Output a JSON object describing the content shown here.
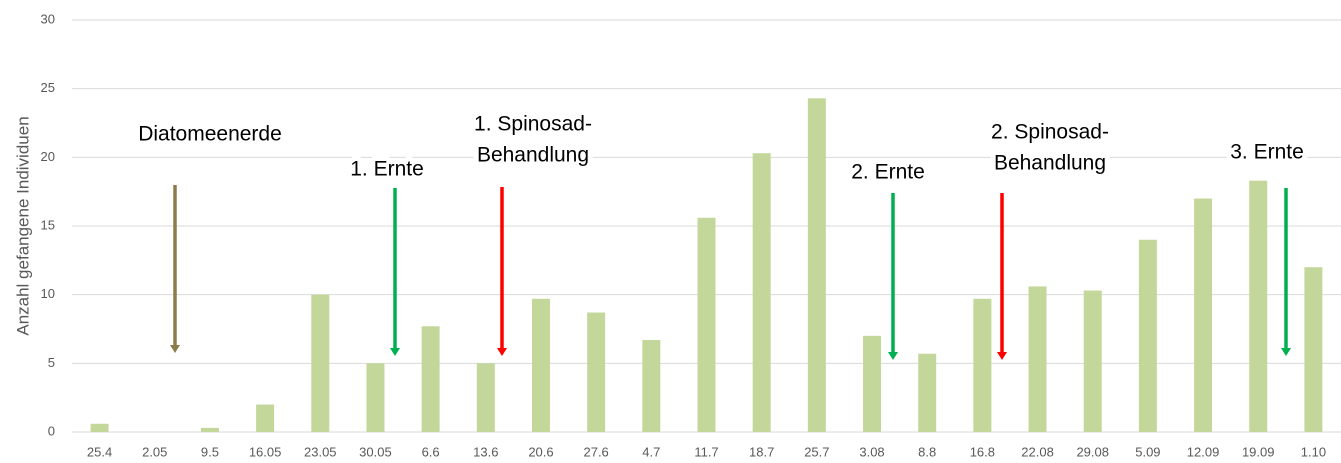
{
  "chart_data": {
    "type": "bar",
    "y_label": "Anzahl gefangene Individuen",
    "categories": [
      "25.4",
      "2.05",
      "9.5",
      "16.05",
      "23.05",
      "30.05",
      "6.6",
      "13.6",
      "20.6",
      "27.6",
      "4.7",
      "11.7",
      "18.7",
      "25.7",
      "3.08",
      "8.8",
      "16.8",
      "22.08",
      "29.08",
      "5.09",
      "12.09",
      "19.09",
      "1.10"
    ],
    "values": [
      0.6,
      0,
      0.3,
      2,
      10,
      5,
      7.7,
      5,
      9.7,
      8.7,
      6.7,
      15.6,
      20.3,
      24.3,
      7,
      5.7,
      9.7,
      10.6,
      10.3,
      14,
      17,
      18.3,
      12
    ],
    "color": "#c4d79b",
    "ylim": [
      0,
      30
    ],
    "yticks": [
      0,
      5,
      10,
      15,
      20,
      25,
      30
    ],
    "grid": true,
    "annotations": [
      {
        "lines": [
          "Diatomeenerde"
        ],
        "color": "#8b7d4b"
      },
      {
        "lines": [
          "1. Ernte"
        ],
        "color": "#00b050"
      },
      {
        "lines": [
          "1. Spinosad-",
          "Behandlung"
        ],
        "color": "#ff0000"
      },
      {
        "lines": [
          "2. Ernte"
        ],
        "color": "#00b050"
      },
      {
        "lines": [
          "2. Spinosad-",
          "Behandlung"
        ],
        "color": "#ff0000"
      },
      {
        "lines": [
          "3. Ernte"
        ],
        "color": "#00b050"
      }
    ]
  }
}
